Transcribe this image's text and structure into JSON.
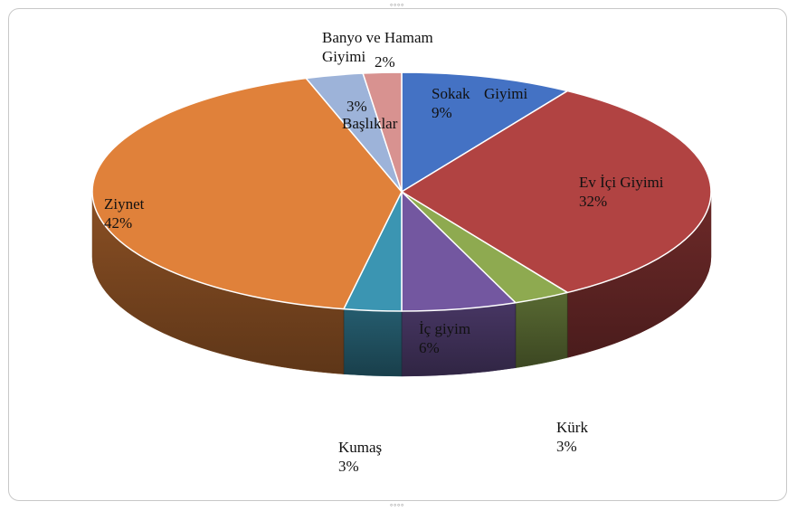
{
  "chart_data": {
    "type": "pie",
    "style": "3d",
    "slices": [
      {
        "label": [
          "Sokak",
          "Giyimi"
        ],
        "label_layout": "inline",
        "value": 9,
        "value_text": "9%",
        "color": "#4472c4"
      },
      {
        "label": [
          "Ev İçi Giyimi"
        ],
        "label_layout": "stacked",
        "value": 32,
        "value_text": "32%",
        "color": "#b14342"
      },
      {
        "label": [
          "Kürk"
        ],
        "label_layout": "stacked",
        "value": 3,
        "value_text": "3%",
        "color": "#8eaa50"
      },
      {
        "label": [
          "İç giyim"
        ],
        "label_layout": "stacked",
        "value": 6,
        "value_text": "6%",
        "color": "#7357a0"
      },
      {
        "label": [
          "Kumaş"
        ],
        "label_layout": "stacked",
        "value": 3,
        "value_text": "3%",
        "color": "#3b95b2"
      },
      {
        "label": [
          "Ziynet"
        ],
        "label_layout": "stacked",
        "value": 42,
        "value_text": "42%",
        "color": "#e0813a"
      },
      {
        "label": [
          "Başlıklar"
        ],
        "label_layout": "value-above",
        "value": 3,
        "value_text": "3%",
        "color": "#9db3d9"
      },
      {
        "label": [
          "Banyo ve Hamam",
          "Giyimi"
        ],
        "label_layout": "value-right",
        "value": 2,
        "value_text": "2%",
        "color": "#d89290"
      }
    ],
    "legend": "none",
    "title": ""
  },
  "ui": {
    "handle_glyph": "∘∘∘∘"
  }
}
